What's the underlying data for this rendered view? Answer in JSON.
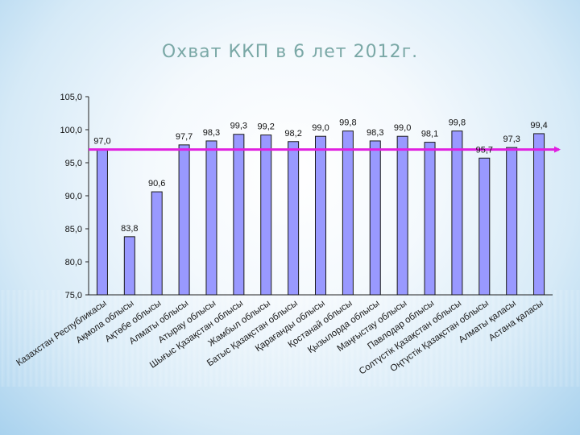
{
  "title": "Охват ККП в 6 лет 2012г.",
  "chart_data": {
    "type": "bar",
    "title": "Охват ККП в 6 лет 2012г.",
    "ylim": [
      75,
      105
    ],
    "yticks": [
      "75,0",
      "80,0",
      "85,0",
      "90,0",
      "95,0",
      "100,0",
      "105,0"
    ],
    "grid": false,
    "legend": "none",
    "categories": [
      "Казахстан Республикасы",
      "Ақмола облысы",
      "Ақтөбе облысы",
      "Алматы облысы",
      "Атырау облысы",
      "Шығыс Қазақстан облысы",
      "Жамбыл облысы",
      "Батыс Қазақстан облысы",
      "Қарағанды облысы",
      "Қостанай облысы",
      "Қызылорда облысы",
      "Маңғыстау облысы",
      "Павлодар облысы",
      "Солтүстік Қазақстан облысы",
      "Оңтүстік Қазақстан облысы",
      "Алматы қаласы",
      "Астана қаласы"
    ],
    "values": [
      97.0,
      83.8,
      90.6,
      97.7,
      98.3,
      99.3,
      99.2,
      98.2,
      99.0,
      99.8,
      98.3,
      99.0,
      98.1,
      99.8,
      95.7,
      97.3,
      99.4
    ],
    "value_labels": [
      "97,0",
      "83,8",
      "90,6",
      "97,7",
      "98,3",
      "99,3",
      "99,2",
      "98,2",
      "99,0",
      "99,8",
      "98,3",
      "99,0",
      "98,1",
      "99,8",
      "95,7",
      "97,3",
      "99,4"
    ],
    "reference_line": 97.0,
    "colors": {
      "bar_fill": "#9999ff",
      "bar_stroke": "#1a1a1a",
      "reference_line": "#e020e0",
      "title": "#7aa8a6",
      "category_text": "#1a1a1a"
    }
  }
}
